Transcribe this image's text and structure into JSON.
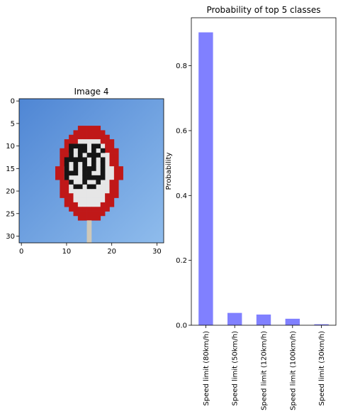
{
  "image_panel": {
    "title": "Image 4",
    "xticks": [
      0,
      10,
      20,
      30
    ],
    "yticks": [
      0,
      5,
      10,
      15,
      20,
      25,
      30
    ],
    "extent": [
      -0.5,
      31.5
    ]
  },
  "chart_data": {
    "type": "bar",
    "title": "Probability of top 5 classes",
    "xlabel": "",
    "ylabel": "Probability",
    "categories": [
      "Speed limit (80km/h)",
      "Speed limit (50km/h)",
      "Speed limit (120km/h)",
      "Speed limit (100km/h)",
      "Speed limit (30km/h)"
    ],
    "values": [
      0.903,
      0.038,
      0.033,
      0.02,
      0.003
    ],
    "yticks": [
      0.0,
      0.2,
      0.4,
      0.6,
      0.8
    ],
    "ylim": [
      0,
      0.948
    ],
    "bar_color": "#8080ff",
    "grid": false,
    "legend": "none"
  },
  "colors": {
    "sky_light": "#8fbcec",
    "sky_dark": "#4f86d4",
    "sign_red": "#c01818",
    "sign_white": "#e6e6e6",
    "sign_black": "#151515",
    "pole": "#cfc8b8"
  }
}
